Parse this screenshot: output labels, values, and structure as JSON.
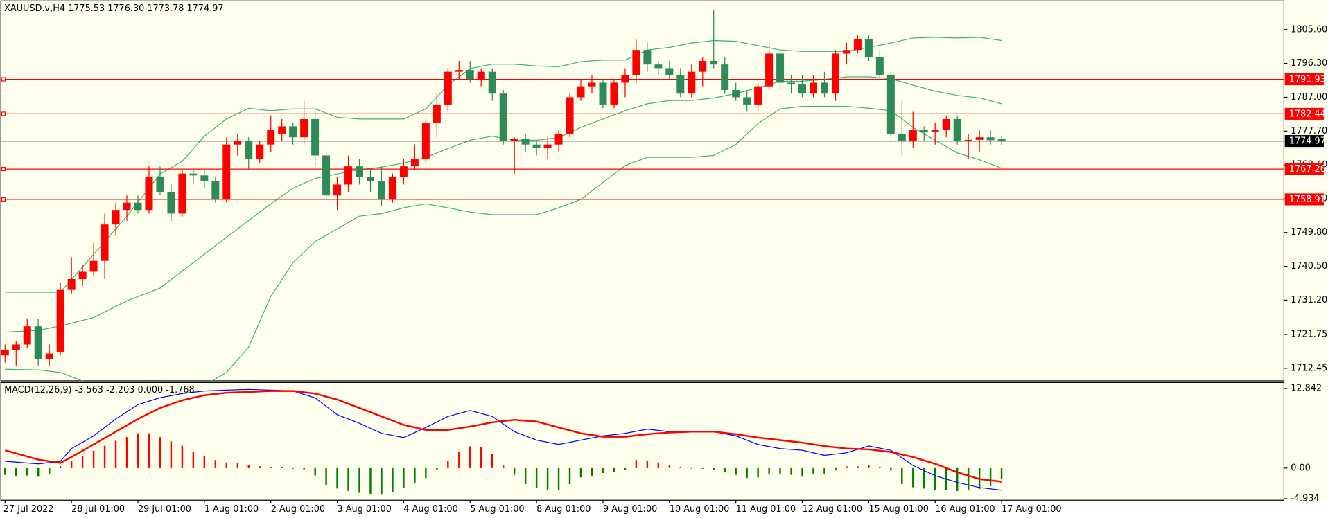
{
  "chart_data": {
    "type": "candlestick",
    "title": "XAUUSD.v,H4  1775.53 1776.30 1773.78 1774.97",
    "background": "#ffffee",
    "up_color": "#ff0000",
    "down_color": "#2e8b57",
    "xlim": [
      -0.38,
      115.5
    ],
    "xticks": [
      {
        "value": 0,
        "label": "27 Jul 2022"
      },
      {
        "value": 6,
        "label": "28 Jul 01:00"
      },
      {
        "value": 12,
        "label": "29 Jul 01:00"
      },
      {
        "value": 18,
        "label": "1 Aug 01:00"
      },
      {
        "value": 24,
        "label": "2 Aug 01:00"
      },
      {
        "value": 30,
        "label": "3 Aug 01:00"
      },
      {
        "value": 36,
        "label": "4 Aug 01:00"
      },
      {
        "value": 42,
        "label": "5 Aug 01:00"
      },
      {
        "value": 48,
        "label": "8 Aug 01:00"
      },
      {
        "value": 54,
        "label": "9 Aug 01:00"
      },
      {
        "value": 60,
        "label": "10 Aug 01:00"
      },
      {
        "value": 66,
        "label": "11 Aug 01:00"
      },
      {
        "value": 72,
        "label": "12 Aug 01:00"
      },
      {
        "value": 78,
        "label": "15 Aug 01:00"
      },
      {
        "value": 84,
        "label": "16 Aug 01:00"
      },
      {
        "value": 90,
        "label": "17 Aug 01:00"
      }
    ],
    "ylim": [
      1709.0,
      1813.5
    ],
    "yticks": [
      {
        "value": 1805.6,
        "label": "1805.60"
      },
      {
        "value": 1796.3,
        "label": "1796.30"
      },
      {
        "value": 1787,
        "label": "1787.00"
      },
      {
        "value": 1777.7,
        "label": "1777.70"
      },
      {
        "value": 1768.4,
        "label": "1768.40"
      },
      {
        "value": 1759.1,
        "label": "1759.10"
      },
      {
        "value": 1749.8,
        "label": "1749.80"
      },
      {
        "value": 1740.5,
        "label": "1740.50"
      },
      {
        "value": 1731.2,
        "label": "1731.20"
      },
      1721.75,
      1712.45
    ],
    "ohlc": [
      [
        1716,
        1719,
        1714,
        1717.5
      ],
      [
        1717.5,
        1720,
        1713,
        1719
      ],
      [
        1719,
        1726,
        1718,
        1724
      ],
      [
        1724,
        1726,
        1713,
        1715
      ],
      [
        1715,
        1719,
        1713,
        1716.5
      ],
      [
        1717,
        1736,
        1716,
        1734
      ],
      [
        1734,
        1743,
        1733,
        1737
      ],
      [
        1737,
        1741,
        1735,
        1739
      ],
      [
        1739,
        1747,
        1738,
        1742
      ],
      [
        1742,
        1755,
        1737,
        1752
      ],
      [
        1752,
        1758,
        1749,
        1756
      ],
      [
        1756,
        1760,
        1753,
        1758
      ],
      [
        1758,
        1760,
        1755,
        1756
      ],
      [
        1756,
        1768,
        1755,
        1765
      ],
      [
        1765,
        1768,
        1760,
        1761
      ],
      [
        1761,
        1763,
        1753,
        1755
      ],
      [
        1755,
        1767,
        1754,
        1766
      ],
      [
        1766,
        1767,
        1763,
        1765.5
      ],
      [
        1765.5,
        1767,
        1762,
        1764
      ],
      [
        1764,
        1765,
        1758,
        1759
      ],
      [
        1759,
        1776,
        1758,
        1774
      ],
      [
        1774,
        1777,
        1771,
        1775
      ],
      [
        1775,
        1776,
        1767,
        1770
      ],
      [
        1770,
        1775,
        1769,
        1774
      ],
      [
        1774,
        1782,
        1772,
        1778
      ],
      [
        1777,
        1781,
        1775,
        1779
      ],
      [
        1779,
        1780,
        1774,
        1776
      ],
      [
        1776,
        1786,
        1774,
        1781
      ],
      [
        1781,
        1784,
        1768,
        1771
      ],
      [
        1771,
        1772,
        1759,
        1760
      ],
      [
        1760,
        1765,
        1756,
        1763
      ],
      [
        1763,
        1771,
        1761,
        1768
      ],
      [
        1768,
        1770,
        1763,
        1765
      ],
      [
        1765,
        1767,
        1761,
        1764
      ],
      [
        1764,
        1768,
        1757,
        1759
      ],
      [
        1759,
        1766,
        1758,
        1765
      ],
      [
        1765,
        1770,
        1763,
        1768
      ],
      [
        1768,
        1774,
        1767,
        1770
      ],
      [
        1770,
        1781,
        1769,
        1780
      ],
      [
        1780,
        1788,
        1776,
        1785
      ],
      [
        1785,
        1795,
        1783,
        1794
      ],
      [
        1794,
        1797,
        1792,
        1794.5
      ],
      [
        1794.5,
        1797,
        1791,
        1792
      ],
      [
        1792,
        1795,
        1790,
        1794
      ],
      [
        1794,
        1795,
        1786,
        1788
      ],
      [
        1788,
        1789,
        1774,
        1775
      ],
      [
        1775,
        1776,
        1766,
        1775.5
      ],
      [
        1775.5,
        1777,
        1772,
        1774
      ],
      [
        1774,
        1775,
        1771,
        1773
      ],
      [
        1773,
        1776,
        1770,
        1774
      ],
      [
        1774,
        1778,
        1772,
        1777
      ],
      [
        1777,
        1788,
        1776,
        1787
      ],
      [
        1787,
        1792,
        1786,
        1790
      ],
      [
        1790,
        1793,
        1788,
        1791
      ],
      [
        1791,
        1792,
        1784,
        1785
      ],
      [
        1785,
        1792,
        1784,
        1791
      ],
      [
        1791,
        1795,
        1787,
        1793
      ],
      [
        1793,
        1803,
        1791,
        1800
      ],
      [
        1800,
        1802,
        1794,
        1796
      ],
      [
        1796,
        1797,
        1793,
        1795
      ],
      [
        1795,
        1797,
        1792,
        1793
      ],
      [
        1793,
        1795,
        1787,
        1788
      ],
      [
        1788,
        1796,
        1787,
        1794
      ],
      [
        1794,
        1798,
        1790,
        1797
      ],
      [
        1797,
        1811,
        1795,
        1796
      ],
      [
        1796,
        1798,
        1788,
        1789
      ],
      [
        1789,
        1791,
        1786,
        1787
      ],
      [
        1787,
        1789,
        1783,
        1785
      ],
      [
        1785,
        1791,
        1783,
        1790
      ],
      [
        1790,
        1802,
        1789,
        1799
      ],
      [
        1799,
        1800,
        1789,
        1791
      ],
      [
        1791,
        1793,
        1788,
        1790.5
      ],
      [
        1790.5,
        1793,
        1787,
        1788
      ],
      [
        1788,
        1793,
        1787,
        1791
      ],
      [
        1791,
        1794,
        1787,
        1788
      ],
      [
        1788,
        1800,
        1786,
        1799
      ],
      [
        1799,
        1802,
        1796,
        1800
      ],
      [
        1800,
        1804,
        1799,
        1803
      ],
      [
        1803,
        1804,
        1797,
        1798
      ],
      [
        1798,
        1800,
        1792,
        1793
      ],
      [
        1793,
        1794,
        1776,
        1777
      ],
      [
        1777,
        1786,
        1771,
        1775
      ],
      [
        1775,
        1783,
        1773,
        1778
      ],
      [
        1778,
        1779,
        1775,
        1777.5
      ],
      [
        1777.5,
        1780,
        1774,
        1778
      ],
      [
        1778,
        1782,
        1776,
        1781
      ],
      [
        1781,
        1782,
        1774,
        1775
      ],
      [
        1775,
        1777,
        1770,
        1775.3
      ],
      [
        1775.3,
        1778,
        1772,
        1776
      ],
      [
        1776,
        1778,
        1774,
        1775.2
      ],
      [
        1775.53,
        1776.3,
        1773.78,
        1774.97
      ]
    ],
    "bands": {
      "color": "#3cb371",
      "x": [
        0,
        3,
        5,
        8,
        11,
        14,
        16,
        18,
        20,
        22,
        24,
        26,
        28,
        30,
        32,
        34,
        36,
        38,
        40,
        42,
        44,
        46,
        48,
        50,
        52,
        54,
        56,
        58,
        60,
        62,
        64,
        66,
        68,
        70,
        72,
        74,
        76,
        78,
        80,
        82,
        84,
        86,
        88,
        90
      ],
      "upper": [
        1733.36,
        1733.36,
        1733.36,
        1743.8,
        1754.3,
        1765.9,
        1769.4,
        1776.3,
        1781.0,
        1784.0,
        1783.3,
        1783.8,
        1783.8,
        1781.5,
        1781.0,
        1781.0,
        1781.0,
        1783.8,
        1790.3,
        1794.9,
        1796.1,
        1796.1,
        1795.6,
        1795.4,
        1796.8,
        1797.2,
        1797.2,
        1800.0,
        1800.7,
        1801.9,
        1802.6,
        1802.4,
        1801.2,
        1800.0,
        1799.6,
        1799.6,
        1799.6,
        1800.7,
        1801.9,
        1803.3,
        1803.5,
        1803.3,
        1803.5,
        1802.6
      ],
      "middle": [
        1722.4,
        1722.9,
        1724.1,
        1726.4,
        1731.0,
        1734.5,
        1739.2,
        1743.8,
        1748.5,
        1753.1,
        1757.7,
        1762.0,
        1764.7,
        1765.9,
        1767.1,
        1767.8,
        1768.9,
        1770.5,
        1772.9,
        1775.2,
        1776.3,
        1775.2,
        1775.2,
        1775.9,
        1778.7,
        1781.0,
        1783.3,
        1785.2,
        1786.1,
        1786.1,
        1786.8,
        1788.0,
        1789.6,
        1791.4,
        1791.4,
        1791.9,
        1792.6,
        1792.6,
        1792.1,
        1790.3,
        1788.7,
        1787.5,
        1786.8,
        1785.2
      ],
      "lower": [
        1712.2,
        1712.0,
        1711.3,
        1707.8,
        1703.2,
        1702.0,
        1704.3,
        1707.8,
        1711.3,
        1718.3,
        1732.2,
        1741.5,
        1747.3,
        1750.8,
        1754.3,
        1755.0,
        1756.6,
        1757.7,
        1756.6,
        1755.4,
        1754.7,
        1754.7,
        1754.7,
        1756.6,
        1758.9,
        1763.6,
        1768.2,
        1770.5,
        1770.5,
        1770.5,
        1771.0,
        1774.0,
        1779.8,
        1783.8,
        1784.5,
        1784.5,
        1784.5,
        1784.0,
        1783.3,
        1778.7,
        1775.2,
        1771.7,
        1769.8,
        1767.5
      ]
    },
    "levels": {
      "color": "#ff0000",
      "values": [
        1791.93,
        1782.44,
        1767.26,
        1758.91
      ]
    },
    "last_price": {
      "color": "#000000",
      "value": 1774.97
    },
    "macd": {
      "title": "MACD(12,26,9) -3.563 -2.203 0.000 -1.768",
      "ylim": [
        -5.19,
        13.8
      ],
      "yticks": [
        12.842,
        {
          "value": 0,
          "label": "0.00"
        },
        -4.934
      ],
      "hist_up_color": "#ff0000",
      "hist_down_color": "#008000",
      "histogram": [
        -1.1,
        -1.3,
        -1.2,
        -1.4,
        -1.0,
        0.3,
        1.2,
        2.0,
        2.8,
        3.6,
        4.4,
        5.0,
        5.6,
        5.5,
        5.0,
        4.3,
        3.6,
        2.6,
        2.0,
        1.3,
        0.9,
        0.8,
        0.5,
        0.3,
        0.2,
        0.1,
        -0.1,
        -0.2,
        -1.2,
        -2.8,
        -3.3,
        -3.7,
        -4.0,
        -4.2,
        -4.3,
        -3.9,
        -3.2,
        -2.4,
        -1.6,
        -0.3,
        1.2,
        2.6,
        3.5,
        3.4,
        2.3,
        0.4,
        -1.1,
        -2.6,
        -3.2,
        -3.5,
        -3.6,
        -2.6,
        -1.5,
        -1.3,
        -0.8,
        -0.6,
        -0.3,
        1.3,
        1.1,
        0.9,
        0.4,
        0.1,
        -0.1,
        -0.1,
        -0.3,
        -0.7,
        -1.1,
        -1.6,
        -1.5,
        -1.0,
        -0.9,
        -1.1,
        -1.4,
        -0.9,
        -1.0,
        -0.4,
        0.3,
        0.3,
        0.4,
        0.2,
        -0.4,
        -2.6,
        -3.1,
        -3.3,
        -3.5,
        -3.5,
        -3.7,
        -3.6,
        -3.4,
        -2.9,
        -1.768
      ],
      "x": [
        0,
        3,
        5,
        6,
        8,
        10,
        12,
        14,
        16,
        18,
        20,
        22,
        24,
        26,
        28,
        30,
        32,
        34,
        36,
        38,
        40,
        42,
        44,
        46,
        48,
        50,
        52,
        54,
        56,
        58,
        60,
        62,
        64,
        66,
        68,
        70,
        72,
        74,
        76,
        78,
        80,
        82,
        84,
        86,
        88,
        90
      ],
      "main": {
        "color": "#0000ff",
        "values": [
          1.09,
          0.68,
          1.09,
          3.14,
          5.19,
          7.92,
          10.25,
          11.35,
          12.02,
          12.43,
          12.57,
          12.7,
          12.57,
          12.43,
          11.34,
          8.61,
          7.24,
          5.6,
          4.92,
          6.56,
          8.33,
          9.29,
          8.33,
          5.87,
          4.51,
          3.82,
          4.51,
          5.19,
          5.6,
          6.28,
          5.87,
          5.87,
          5.87,
          5.19,
          3.82,
          3.14,
          2.87,
          2.05,
          2.46,
          3.55,
          2.87,
          0.41,
          -1.23,
          -2.32,
          -3.14,
          -3.563
        ]
      },
      "signal": {
        "color": "#ff0000",
        "values": [
          2.87,
          1.37,
          0.82,
          1.78,
          3.82,
          5.87,
          7.92,
          9.7,
          10.93,
          11.75,
          12.16,
          12.29,
          12.43,
          12.43,
          12.02,
          11.06,
          9.7,
          8.33,
          6.97,
          6.15,
          6.15,
          6.69,
          7.38,
          7.79,
          7.51,
          6.56,
          5.6,
          5.05,
          5.05,
          5.46,
          5.74,
          5.87,
          5.87,
          5.46,
          4.92,
          4.51,
          4.1,
          3.55,
          3.14,
          3.01,
          2.6,
          1.78,
          0.68,
          -0.68,
          -1.78,
          -2.203
        ]
      }
    }
  }
}
